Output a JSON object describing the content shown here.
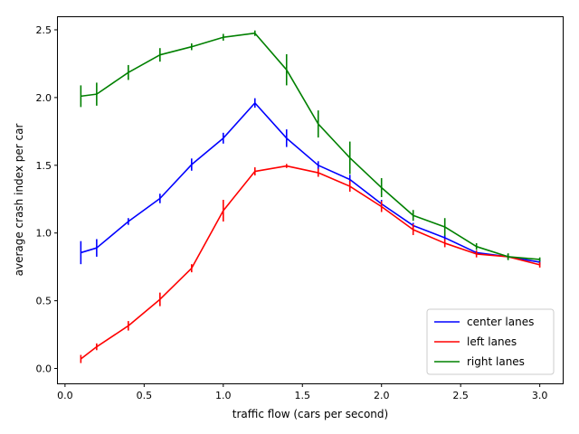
{
  "chart_data": {
    "type": "line",
    "title": "",
    "xlabel": "traffic flow (cars per second)",
    "ylabel": "average crash index per car",
    "xlim": [
      -0.045,
      3.145
    ],
    "ylim": [
      -0.11,
      2.6
    ],
    "x_ticks": [
      0.0,
      0.5,
      1.0,
      1.5,
      2.0,
      2.5,
      3.0
    ],
    "x_tick_labels": [
      "0.0",
      "0.5",
      "1.0",
      "1.5",
      "2.0",
      "2.5",
      "3.0"
    ],
    "y_ticks": [
      0.0,
      0.5,
      1.0,
      1.5,
      2.0,
      2.5
    ],
    "y_tick_labels": [
      "0.0",
      "0.5",
      "1.0",
      "1.5",
      "2.0",
      "2.5"
    ],
    "grid": false,
    "legend_position": "lower-right",
    "x": [
      0.1,
      0.2,
      0.4,
      0.6,
      0.8,
      1.0,
      1.2,
      1.4,
      1.6,
      1.8,
      2.0,
      2.2,
      2.4,
      2.6,
      2.8,
      3.0
    ],
    "series": [
      {
        "name": "center lanes",
        "color": "#0000ff",
        "values": [
          0.855,
          0.89,
          1.085,
          1.255,
          1.505,
          1.7,
          1.96,
          1.7,
          1.5,
          1.395,
          1.215,
          1.055,
          0.965,
          0.855,
          0.825,
          0.785
        ],
        "errors": [
          0.085,
          0.065,
          0.025,
          0.035,
          0.045,
          0.04,
          0.035,
          0.065,
          0.03,
          0.035,
          0.03,
          0.02,
          0.02,
          0.015,
          0.02,
          0.02
        ]
      },
      {
        "name": "left lanes",
        "color": "#ff0000",
        "values": [
          0.07,
          0.16,
          0.315,
          0.51,
          0.74,
          1.165,
          1.455,
          1.495,
          1.445,
          1.345,
          1.195,
          1.025,
          0.925,
          0.845,
          0.825,
          0.765
        ],
        "errors": [
          0.03,
          0.025,
          0.035,
          0.05,
          0.03,
          0.08,
          0.03,
          0.015,
          0.03,
          0.04,
          0.04,
          0.04,
          0.03,
          0.025,
          0.02,
          0.02
        ]
      },
      {
        "name": "right lanes",
        "color": "#008000",
        "values": [
          2.01,
          2.025,
          2.185,
          2.315,
          2.375,
          2.445,
          2.475,
          2.205,
          1.805,
          1.555,
          1.335,
          1.13,
          1.045,
          0.9,
          0.825,
          0.805
        ],
        "errors": [
          0.08,
          0.085,
          0.055,
          0.05,
          0.025,
          0.025,
          0.02,
          0.115,
          0.1,
          0.12,
          0.07,
          0.04,
          0.065,
          0.025,
          0.025,
          0.015
        ]
      }
    ]
  }
}
